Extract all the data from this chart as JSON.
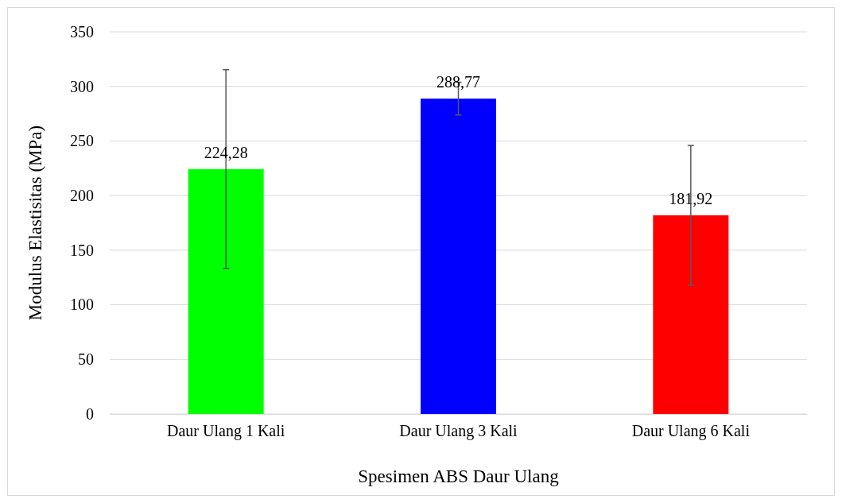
{
  "chart_data": {
    "type": "bar",
    "xlabel": "Spesimen ABS Daur Ulang",
    "ylabel": "Modulus Elastisitas (MPa)",
    "categories": [
      "Daur Ulang 1 Kali",
      "Daur Ulang 3 Kali",
      "Daur Ulang 6 Kali"
    ],
    "values": [
      224.28,
      288.77,
      181.92
    ],
    "colors": [
      "#00ff00",
      "#0000ff",
      "#ff0000"
    ],
    "errors": [
      91,
      15,
      64
    ],
    "value_labels": [
      "224,28",
      "288,77",
      "181,92"
    ],
    "ylim": [
      0,
      350
    ],
    "yticks": [
      0,
      50,
      100,
      150,
      200,
      250,
      300,
      350
    ],
    "grid": "y"
  }
}
